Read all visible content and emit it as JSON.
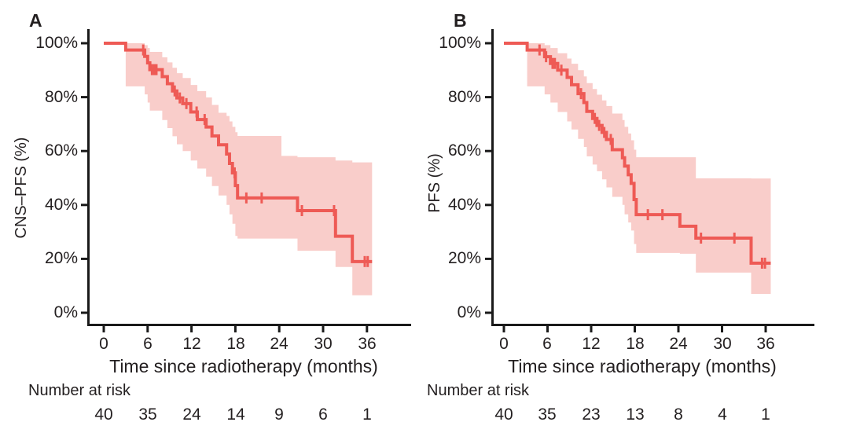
{
  "style": {
    "background": "#ffffff",
    "text_color": "#231f20",
    "axis_color": "#1a1a1a",
    "curve_color": "#ee5a55",
    "band_color": "#f9cdca"
  },
  "panels": [
    {
      "label": "A",
      "y_axis_title": "CNS–PFS (%)",
      "x_axis_title": "Time since radiotherapy (months)",
      "risk_header": "Number at risk",
      "y_tick_labels": [
        "100%",
        "80%",
        "60%",
        "40%",
        "20%",
        "0%"
      ],
      "x_tick_labels": [
        "0",
        "6",
        "12",
        "18",
        "24",
        "30",
        "36"
      ],
      "risk_counts": [
        "40",
        "35",
        "24",
        "14",
        "9",
        "6",
        "1"
      ]
    },
    {
      "label": "B",
      "y_axis_title": "PFS (%)",
      "x_axis_title": "Time since radiotherapy (months)",
      "risk_header": "Number at risk",
      "y_tick_labels": [
        "100%",
        "80%",
        "60%",
        "40%",
        "20%",
        "0%"
      ],
      "x_tick_labels": [
        "0",
        "6",
        "12",
        "18",
        "24",
        "30",
        "36"
      ],
      "risk_counts": [
        "40",
        "35",
        "23",
        "13",
        "8",
        "4",
        "1"
      ]
    }
  ],
  "chart_data": [
    {
      "type": "line",
      "subtype": "kaplan_meier_step",
      "title": "A",
      "xlabel": "Time since radiotherapy (months)",
      "ylabel": "CNS–PFS (%)",
      "xlim": [
        0,
        39
      ],
      "ylim": [
        0,
        100
      ],
      "x_tick_values": [
        0,
        6,
        12,
        18,
        24,
        30,
        36
      ],
      "y_tick_values": [
        100,
        80,
        60,
        40,
        20,
        0
      ],
      "legend": "none",
      "grid": false,
      "t_end": 36.7,
      "steps": [
        [
          0,
          100
        ],
        [
          3,
          97.5
        ],
        [
          5.6,
          95.1
        ],
        [
          6,
          92.7
        ],
        [
          6.3,
          90.2
        ],
        [
          8,
          87.6
        ],
        [
          8.7,
          85
        ],
        [
          9.4,
          82.3
        ],
        [
          10,
          79.7
        ],
        [
          10.8,
          77.6
        ],
        [
          11.9,
          74.5
        ],
        [
          12.8,
          71.7
        ],
        [
          14,
          68.9
        ],
        [
          14.8,
          65.6
        ],
        [
          15.7,
          62.3
        ],
        [
          16.8,
          58.9
        ],
        [
          17.2,
          55.4
        ],
        [
          17.6,
          51.9
        ],
        [
          18,
          47.2
        ],
        [
          18.3,
          42.6
        ],
        [
          26.5,
          37.9
        ],
        [
          31.7,
          28.4
        ],
        [
          34,
          19
        ]
      ],
      "censor_marks": [
        [
          5.4,
          97.5
        ],
        [
          6.6,
          90.2
        ],
        [
          6.9,
          90.2
        ],
        [
          7.2,
          90.2
        ],
        [
          9.7,
          82.3
        ],
        [
          10.4,
          79.7
        ],
        [
          11.3,
          77.6
        ],
        [
          12.7,
          74.5
        ],
        [
          13.8,
          71.7
        ],
        [
          17.9,
          51.9
        ],
        [
          19.5,
          42.6
        ],
        [
          21.6,
          42.6
        ],
        [
          27.1,
          37.9
        ],
        [
          31.5,
          37.9
        ],
        [
          35.7,
          19
        ],
        [
          36.1,
          19
        ]
      ],
      "ci_band": [
        [
          3,
          84,
          100
        ],
        [
          5.6,
          81,
          99.3
        ],
        [
          6,
          78,
          98.2
        ],
        [
          6.3,
          75,
          96.8
        ],
        [
          8,
          71.5,
          94.8
        ],
        [
          8.7,
          68.5,
          92.9
        ],
        [
          9.4,
          65.5,
          90.9
        ],
        [
          10,
          62.5,
          88.9
        ],
        [
          10.8,
          60,
          87.1
        ],
        [
          11.9,
          56.5,
          84.5
        ],
        [
          12.8,
          53.5,
          82.2
        ],
        [
          14,
          50.5,
          79.9
        ],
        [
          14.8,
          47,
          77.1
        ],
        [
          15.7,
          43.5,
          74.2
        ],
        [
          16.8,
          40,
          73
        ],
        [
          17.2,
          36.5,
          71
        ],
        [
          17.6,
          33,
          69
        ],
        [
          18,
          28.5,
          67
        ],
        [
          18.3,
          27.5,
          65.6
        ],
        [
          24.3,
          27.5,
          58.2
        ],
        [
          26.5,
          23,
          57.7
        ],
        [
          31.7,
          17,
          56.5
        ],
        [
          34,
          6.5,
          55.8
        ]
      ],
      "number_at_risk": {
        "times": [
          0,
          6,
          12,
          18,
          24,
          30,
          36
        ],
        "counts": [
          40,
          35,
          24,
          14,
          9,
          6,
          1
        ]
      }
    },
    {
      "type": "line",
      "subtype": "kaplan_meier_step",
      "title": "B",
      "xlabel": "Time since radiotherapy (months)",
      "ylabel": "PFS (%)",
      "xlim": [
        0,
        39
      ],
      "ylim": [
        0,
        100
      ],
      "x_tick_values": [
        0,
        6,
        12,
        18,
        24,
        30,
        36
      ],
      "y_tick_values": [
        100,
        80,
        60,
        40,
        20,
        0
      ],
      "legend": "none",
      "grid": false,
      "t_end": 36.7,
      "steps": [
        [
          0,
          100
        ],
        [
          3.2,
          97.5
        ],
        [
          5.6,
          95
        ],
        [
          6.4,
          92.5
        ],
        [
          7.4,
          90
        ],
        [
          8.7,
          87.3
        ],
        [
          9.3,
          84.6
        ],
        [
          10.2,
          81.3
        ],
        [
          11,
          78
        ],
        [
          11.4,
          74.7
        ],
        [
          12.2,
          72.1
        ],
        [
          12.8,
          69.5
        ],
        [
          13.5,
          66.9
        ],
        [
          14.1,
          64.3
        ],
        [
          14.9,
          60.5
        ],
        [
          16.3,
          57.5
        ],
        [
          16.6,
          54.4
        ],
        [
          17.1,
          51.2
        ],
        [
          17.5,
          48
        ],
        [
          17.9,
          42
        ],
        [
          18.2,
          36.4
        ],
        [
          24.2,
          32.1
        ],
        [
          26.4,
          27.7
        ],
        [
          34,
          18.4
        ]
      ],
      "censor_marks": [
        [
          4.9,
          97.5
        ],
        [
          5.8,
          95
        ],
        [
          6.7,
          92.5
        ],
        [
          7,
          92.5
        ],
        [
          7.9,
          90
        ],
        [
          10.6,
          81.3
        ],
        [
          12.5,
          72.1
        ],
        [
          13.1,
          69.5
        ],
        [
          13.8,
          66.9
        ],
        [
          14.7,
          64.3
        ],
        [
          19.8,
          36.4
        ],
        [
          21.8,
          36.4
        ],
        [
          27.1,
          27.7
        ],
        [
          31.7,
          27.7
        ],
        [
          35.5,
          18.4
        ],
        [
          35.9,
          18.4
        ]
      ],
      "ci_band": [
        [
          3.2,
          84,
          100
        ],
        [
          5.6,
          81,
          99.3
        ],
        [
          6.4,
          78,
          98.2
        ],
        [
          7.4,
          74.5,
          96.3
        ],
        [
          8.7,
          71,
          94.3
        ],
        [
          9.3,
          68,
          92.4
        ],
        [
          10.2,
          64.5,
          90
        ],
        [
          11,
          61.5,
          87.7
        ],
        [
          11.4,
          58,
          85.2
        ],
        [
          12.2,
          55,
          83
        ],
        [
          12.8,
          52.5,
          80.9
        ],
        [
          13.5,
          49.5,
          78.8
        ],
        [
          14.1,
          46.5,
          76.7
        ],
        [
          14.9,
          43,
          73.9
        ],
        [
          16.3,
          40,
          71.5
        ],
        [
          16.6,
          36.5,
          69
        ],
        [
          17.1,
          33.5,
          66.5
        ],
        [
          17.5,
          30.5,
          64
        ],
        [
          17.9,
          25.5,
          60.5
        ],
        [
          18.2,
          22.2,
          57.7
        ],
        [
          24.2,
          21.9,
          57.7
        ],
        [
          26.4,
          14.9,
          49.9
        ],
        [
          34,
          7,
          49.8
        ]
      ],
      "number_at_risk": {
        "times": [
          0,
          6,
          12,
          18,
          24,
          30,
          36
        ],
        "counts": [
          40,
          35,
          23,
          13,
          8,
          4,
          1
        ]
      }
    }
  ]
}
